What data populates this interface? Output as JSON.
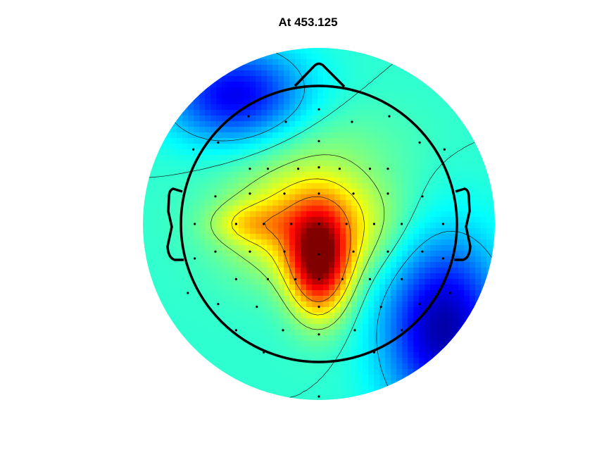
{
  "chart_data": {
    "type": "heatmap",
    "subtype": "eeg-topoplot",
    "title": "At 453.125",
    "colormap": "jet",
    "contours": true,
    "electrodes_shown": true,
    "head_outline": true,
    "peak": {
      "x": 0.0,
      "y": -0.3,
      "value": 1.0
    },
    "sources": [
      {
        "x": 0.0,
        "y": -0.3,
        "sx": 0.15,
        "sy": 0.26,
        "a": 0.48
      },
      {
        "x": -0.05,
        "y": 0.0,
        "sx": 0.4,
        "sy": 0.28,
        "a": 0.3
      },
      {
        "x": -0.5,
        "y": 0.0,
        "sx": 0.2,
        "sy": 0.1,
        "a": 0.12
      },
      {
        "x": -0.6,
        "y": 0.92,
        "sx": 0.35,
        "sy": 0.25,
        "a": -0.32
      },
      {
        "x": 0.9,
        "y": -0.75,
        "sx": 0.3,
        "sy": 0.45,
        "a": -0.38
      },
      {
        "x": -0.1,
        "y": 0.6,
        "sx": 0.5,
        "sy": 0.22,
        "a": 0.06
      }
    ],
    "base": 0.42,
    "contour_levels": [
      0.32,
      0.42,
      0.52,
      0.62,
      0.74
    ],
    "electrodes": [
      [
        0.0,
        0.83
      ],
      [
        -0.51,
        0.78
      ],
      [
        -0.24,
        0.74
      ],
      [
        0.24,
        0.74
      ],
      [
        0.51,
        0.78
      ],
      [
        -0.73,
        0.59
      ],
      [
        0.0,
        0.6
      ],
      [
        0.73,
        0.59
      ],
      [
        -0.91,
        0.54
      ],
      [
        -0.5,
        0.4
      ],
      [
        -0.37,
        0.4
      ],
      [
        -0.15,
        0.4
      ],
      [
        0.0,
        0.41
      ],
      [
        0.15,
        0.4
      ],
      [
        0.37,
        0.4
      ],
      [
        0.5,
        0.4
      ],
      [
        0.91,
        0.54
      ],
      [
        -0.75,
        0.2
      ],
      [
        -0.5,
        0.22
      ],
      [
        -0.25,
        0.22
      ],
      [
        0.0,
        0.22
      ],
      [
        0.25,
        0.22
      ],
      [
        0.5,
        0.22
      ],
      [
        0.75,
        0.2
      ],
      [
        -0.9,
        0.0
      ],
      [
        -0.6,
        0.0
      ],
      [
        -0.4,
        0.0
      ],
      [
        -0.2,
        0.0
      ],
      [
        0.0,
        0.0
      ],
      [
        0.2,
        0.0
      ],
      [
        0.4,
        0.0
      ],
      [
        0.6,
        0.0
      ],
      [
        0.9,
        0.0
      ],
      [
        -0.75,
        -0.2
      ],
      [
        -0.5,
        -0.2
      ],
      [
        -0.25,
        -0.2
      ],
      [
        0.0,
        -0.22
      ],
      [
        0.25,
        -0.2
      ],
      [
        0.5,
        -0.2
      ],
      [
        0.75,
        -0.2
      ],
      [
        -0.9,
        -0.25
      ],
      [
        -0.6,
        -0.4
      ],
      [
        -0.37,
        -0.4
      ],
      [
        -0.17,
        -0.4
      ],
      [
        0.0,
        -0.4
      ],
      [
        0.17,
        -0.4
      ],
      [
        0.37,
        -0.4
      ],
      [
        0.6,
        -0.4
      ],
      [
        0.9,
        -0.25
      ],
      [
        -0.73,
        -0.58
      ],
      [
        -0.45,
        -0.6
      ],
      [
        0.0,
        -0.6
      ],
      [
        0.45,
        -0.6
      ],
      [
        0.73,
        -0.58
      ],
      [
        -0.6,
        -0.77
      ],
      [
        -0.26,
        -0.77
      ],
      [
        0.0,
        -0.8
      ],
      [
        0.26,
        -0.77
      ],
      [
        0.6,
        -0.77
      ],
      [
        -0.4,
        -0.93
      ],
      [
        0.0,
        -1.0
      ],
      [
        0.4,
        -0.93
      ],
      [
        -0.95,
        -0.5
      ],
      [
        0.95,
        -0.5
      ],
      [
        0.0,
        -1.25
      ]
    ]
  }
}
